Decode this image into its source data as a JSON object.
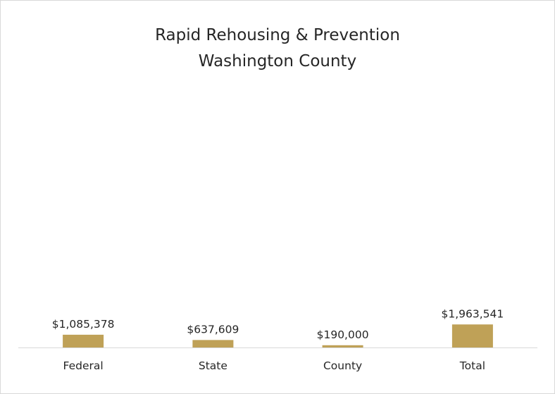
{
  "chart_data": {
    "type": "bar",
    "title": "Rapid Rehousing & Prevention",
    "subtitle": "Washington County",
    "categories": [
      "Federal",
      "State",
      "County",
      "Total"
    ],
    "values": [
      1085378,
      637609,
      190000,
      1963541
    ],
    "data_labels": [
      "$1,085,378",
      "$637,609",
      "$190,000",
      "$1,963,541"
    ],
    "xlabel": "",
    "ylabel": "",
    "ylim": [
      0,
      23000000
    ],
    "grid": false,
    "legend": "none",
    "bar_color": "#bfa157",
    "axis_color": "#d9d9d9"
  }
}
